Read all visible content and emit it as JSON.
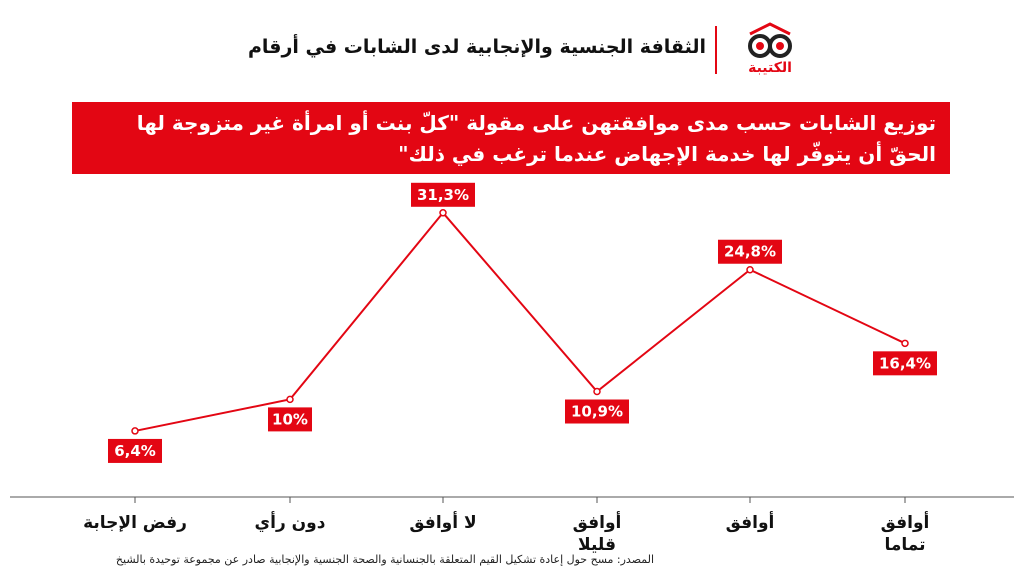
{
  "header": {
    "title": "الثقافة الجنسية والإنجابية لدى الشابات في أرقام",
    "logo_text": "الكتيبة"
  },
  "banner": {
    "line1": "توزيع الشابات حسب مدى موافقتهن على مقولة \"كلّ بنت أو امرأة غير متزوجة لها",
    "line2": "الحقّ أن يتوفّر لها خدمة الإجهاض عندما ترغب في ذلك\""
  },
  "source": "المصدر: مسح حول إعادة تشكيل القيم المتعلقة بالجنسانية والصحة الجنسية والإنجابية صادر عن مجموعة توحيدة بالشيخ",
  "colors": {
    "accent": "#e30613",
    "text": "#111111",
    "axis": "#555555"
  },
  "chart_data": {
    "type": "line",
    "title": "توزيع الشابات حسب مدى موافقتهن على مقولة \"كلّ بنت أو امرأة غير متزوجة لها الحقّ أن يتوفّر لها خدمة الإجهاض عندما ترغب في ذلك\"",
    "categories": [
      "رفض الإجابة",
      "دون رأي",
      "لا أوافق",
      "أوافق قليلا",
      "أوافق",
      "أوافق تماما"
    ],
    "values": [
      6.4,
      10,
      31.3,
      10.9,
      24.8,
      16.4
    ],
    "data_labels": [
      "6,4%",
      "10%",
      "31,3%",
      "10,9%",
      "24,8%",
      "16,4%"
    ],
    "label_position": [
      "below",
      "below",
      "above",
      "below",
      "above",
      "below"
    ],
    "unit": "%",
    "ylim": [
      0,
      33
    ],
    "grid": false,
    "legend": "none"
  }
}
